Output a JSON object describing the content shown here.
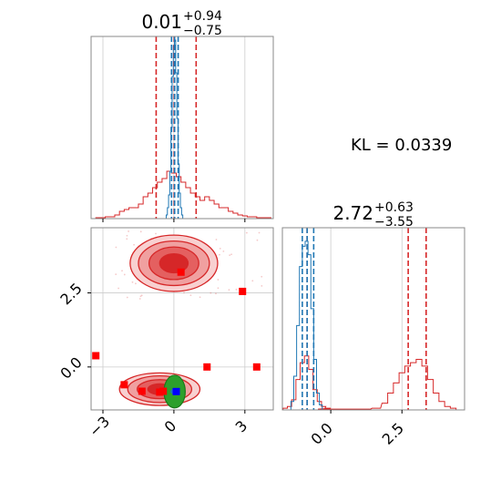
{
  "chart_data": {
    "type": "corner",
    "parameters": [
      {
        "index": 0,
        "median": "0.01",
        "plus": "+0.94",
        "minus": "−0.75",
        "marginal_lim": [
          -3.5,
          4.2
        ],
        "red_quantiles": [
          -0.75,
          0.01,
          0.94
        ],
        "blue_quantiles": [
          -0.1,
          0.03,
          0.18
        ]
      },
      {
        "index": 1,
        "median": "2.72",
        "plus": "+0.63",
        "minus": "−3.55",
        "marginal_lim": [
          -1.7,
          4.7
        ],
        "red_quantiles": [
          -0.83,
          2.72,
          3.35
        ],
        "blue_quantiles": [
          -1.0,
          -0.83,
          -0.6
        ]
      }
    ],
    "annotation": "KL = 0.0339",
    "joint": {
      "xlim": [
        -3.5,
        4.2
      ],
      "ylim": [
        -1.45,
        4.7
      ],
      "xticks": [
        {
          "v": -3,
          "label": "−3"
        },
        {
          "v": 0,
          "label": "0"
        },
        {
          "v": 3,
          "label": "3"
        }
      ],
      "yticks": [
        {
          "v": 0,
          "label": "0.0"
        },
        {
          "v": 2.5,
          "label": "2.5"
        }
      ],
      "red_modes": [
        {
          "cx": 0.0,
          "cy": 3.5,
          "rx": [
            1.85,
            1.5,
            1.05,
            0.6
          ],
          "ry": [
            0.95,
            0.75,
            0.55,
            0.32
          ]
        },
        {
          "cx": -0.6,
          "cy": -0.75,
          "rx": [
            1.7,
            1.35,
            0.95,
            0.5
          ],
          "ry": [
            0.55,
            0.45,
            0.32,
            0.18
          ]
        }
      ],
      "blue_mode": {
        "cx": 0.03,
        "cy": -0.83,
        "rx": 0.16,
        "ry": 0.08
      },
      "green_mode": {
        "cx": 0.03,
        "cy": -0.83,
        "rx": 0.45,
        "ry": 0.55
      },
      "red_points": [
        [
          -3.3,
          0.38
        ],
        [
          -2.1,
          -0.6
        ],
        [
          -1.35,
          -0.82
        ],
        [
          -0.45,
          -0.82
        ],
        [
          0.3,
          3.2
        ],
        [
          1.4,
          0.0
        ],
        [
          2.9,
          2.55
        ],
        [
          3.5,
          0.0
        ],
        [
          -0.6,
          -0.85
        ]
      ],
      "blue_points": [
        [
          0.1,
          -0.83
        ]
      ]
    },
    "marginal_0": {
      "red_bins": [
        [
          -3.2,
          0.005
        ],
        [
          -3.0,
          0.005
        ],
        [
          -2.8,
          0.01
        ],
        [
          -2.6,
          0.01
        ],
        [
          -2.4,
          0.02
        ],
        [
          -2.2,
          0.04
        ],
        [
          -2.0,
          0.05
        ],
        [
          -1.8,
          0.06
        ],
        [
          -1.6,
          0.06
        ],
        [
          -1.4,
          0.08
        ],
        [
          -1.2,
          0.12
        ],
        [
          -1.0,
          0.14
        ],
        [
          -0.8,
          0.17
        ],
        [
          -0.6,
          0.2
        ],
        [
          -0.4,
          0.22
        ],
        [
          -0.2,
          0.26
        ],
        [
          0.0,
          0.25
        ],
        [
          0.2,
          0.23
        ],
        [
          0.4,
          0.2
        ],
        [
          0.6,
          0.17
        ],
        [
          0.8,
          0.14
        ],
        [
          1.0,
          0.12
        ],
        [
          1.2,
          0.1
        ],
        [
          1.4,
          0.12
        ],
        [
          1.6,
          0.1
        ],
        [
          1.8,
          0.08
        ],
        [
          2.0,
          0.06
        ],
        [
          2.2,
          0.06
        ],
        [
          2.4,
          0.04
        ],
        [
          2.6,
          0.03
        ],
        [
          2.8,
          0.02
        ],
        [
          3.0,
          0.015
        ],
        [
          3.2,
          0.01
        ],
        [
          3.4,
          0.01
        ],
        [
          3.6,
          0.005
        ],
        [
          3.8,
          0.005
        ],
        [
          4.0,
          0.005
        ]
      ],
      "blue_bins": [
        [
          -0.3,
          0.02
        ],
        [
          -0.25,
          0.06
        ],
        [
          -0.2,
          0.13
        ],
        [
          -0.15,
          0.26
        ],
        [
          -0.1,
          0.5
        ],
        [
          -0.05,
          0.78
        ],
        [
          0.0,
          0.95
        ],
        [
          0.05,
          0.98
        ],
        [
          0.1,
          0.8
        ],
        [
          0.15,
          0.55
        ],
        [
          0.2,
          0.3
        ],
        [
          0.25,
          0.14
        ],
        [
          0.3,
          0.06
        ],
        [
          0.35,
          0.02
        ]
      ],
      "ylim": [
        0,
        1.0
      ]
    },
    "marginal_1": {
      "red_bins": [
        [
          -1.6,
          0.01
        ],
        [
          -1.45,
          0.02
        ],
        [
          -1.3,
          0.06
        ],
        [
          -1.15,
          0.18
        ],
        [
          -1.0,
          0.28
        ],
        [
          -0.85,
          0.32
        ],
        [
          -0.7,
          0.24
        ],
        [
          -0.55,
          0.12
        ],
        [
          -0.4,
          0.05
        ],
        [
          -0.25,
          0.02
        ],
        [
          -0.1,
          0.01
        ],
        [
          0.1,
          0.005
        ],
        [
          1.2,
          0.005
        ],
        [
          1.6,
          0.01
        ],
        [
          1.9,
          0.04
        ],
        [
          2.1,
          0.1
        ],
        [
          2.3,
          0.16
        ],
        [
          2.5,
          0.22
        ],
        [
          2.7,
          0.26
        ],
        [
          2.9,
          0.28
        ],
        [
          3.1,
          0.3
        ],
        [
          3.3,
          0.26
        ],
        [
          3.5,
          0.18
        ],
        [
          3.7,
          0.1
        ],
        [
          3.9,
          0.05
        ],
        [
          4.1,
          0.02
        ],
        [
          4.3,
          0.01
        ]
      ],
      "blue_bins": [
        [
          -1.35,
          0.05
        ],
        [
          -1.25,
          0.2
        ],
        [
          -1.15,
          0.5
        ],
        [
          -1.05,
          0.85
        ],
        [
          -0.95,
          0.97
        ],
        [
          -0.85,
          1.0
        ],
        [
          -0.75,
          0.92
        ],
        [
          -0.65,
          0.6
        ],
        [
          -0.55,
          0.3
        ],
        [
          -0.45,
          0.1
        ],
        [
          -0.35,
          0.03
        ]
      ],
      "xticks": [
        {
          "v": 0,
          "label": "0.0"
        },
        {
          "v": 2.5,
          "label": "2.5"
        }
      ],
      "ylim": [
        0,
        1.08
      ]
    },
    "colors": {
      "red": "#d62728",
      "blue": "#1f77b4",
      "green": "#2ca02c",
      "point_red": "#ff0000",
      "point_blue": "#0000ff",
      "grid": "#cccccc"
    }
  }
}
